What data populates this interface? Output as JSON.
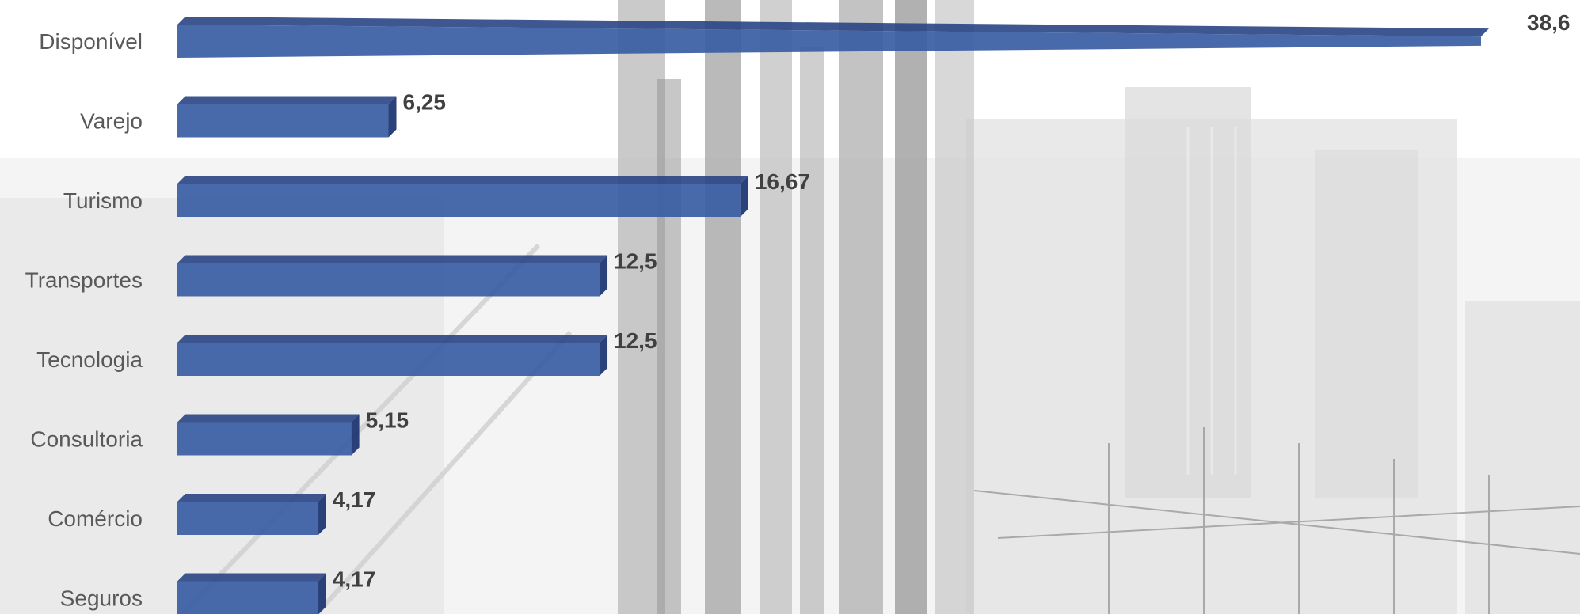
{
  "chart_data": {
    "type": "bar",
    "orientation": "horizontal",
    "style": "3d",
    "categories": [
      "Disponível",
      "Varejo",
      "Turismo",
      "Transportes",
      "Tecnologia",
      "Consultoria",
      "Comércio",
      "Seguros"
    ],
    "values": [
      38.6,
      6.25,
      16.67,
      12.5,
      12.5,
      5.15,
      4.17,
      4.17
    ],
    "data_labels": [
      "38,6",
      "6,25",
      "16,67",
      "12,5",
      "12,5",
      "5,15",
      "4,17",
      "4,17"
    ],
    "title": "",
    "xlabel": "",
    "ylabel": "",
    "xlim": [
      0,
      38.6
    ],
    "grid": false,
    "legend": "none",
    "background": "grayscale city photograph",
    "colors": {
      "bar_front": "#3a5da3",
      "bar_top": "#2a4585",
      "bar_end": "#1f3772",
      "category_text": "#595959",
      "value_text": "#404040"
    }
  }
}
